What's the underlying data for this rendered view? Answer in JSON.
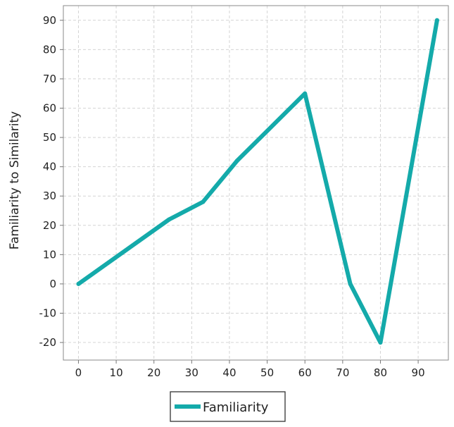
{
  "chart_data": {
    "type": "line",
    "title": "",
    "xlabel": "",
    "ylabel": "Familiarity to Similarity",
    "xlim": [
      -4,
      98
    ],
    "ylim": [
      -26,
      95
    ],
    "x_ticks": [
      0,
      10,
      20,
      30,
      40,
      50,
      60,
      70,
      80,
      90
    ],
    "y_ticks": [
      -20,
      -10,
      0,
      10,
      20,
      30,
      40,
      50,
      60,
      70,
      80,
      90
    ],
    "grid": true,
    "legend_position": "bottom-left",
    "series": [
      {
        "name": "Familiarity",
        "color": "#14AAAA",
        "x": [
          0,
          24,
          33,
          42,
          60,
          72,
          80,
          95
        ],
        "y": [
          0,
          22,
          28,
          42,
          65,
          0,
          -20,
          90
        ]
      }
    ]
  }
}
